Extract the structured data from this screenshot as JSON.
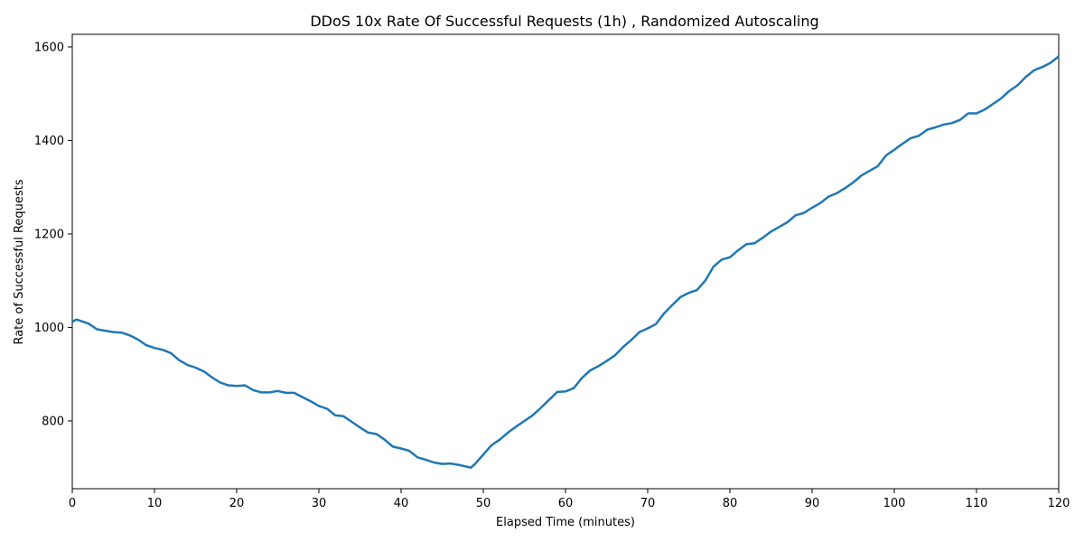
{
  "chart_data": {
    "type": "line",
    "title": "DDoS 10x Rate Of Successful Requests (1h) , Randomized Autoscaling",
    "xlabel": "Elapsed Time (minutes)",
    "ylabel": "Rate of Successful Requests",
    "xlim": [
      0,
      120
    ],
    "ylim": [
      655,
      1627
    ],
    "xticks": [
      0,
      10,
      20,
      30,
      40,
      50,
      60,
      70,
      80,
      90,
      100,
      110,
      120
    ],
    "yticks": [
      800,
      1000,
      1200,
      1400,
      1600
    ],
    "grid": false,
    "color": "#1f77b4",
    "series": [
      {
        "x": [
          0,
          0.5,
          1,
          2,
          3,
          4,
          5,
          6,
          7,
          8,
          9,
          10,
          11,
          12,
          13,
          14,
          15,
          16,
          17,
          18,
          19,
          20,
          21,
          22,
          23,
          24,
          25,
          26,
          27,
          28,
          29,
          30,
          31,
          32,
          33,
          34,
          35,
          36,
          37,
          38,
          39,
          40,
          41,
          42,
          43,
          44,
          45,
          46,
          47,
          48,
          48.5,
          49,
          50,
          51,
          52,
          53,
          54,
          55,
          56,
          57,
          58,
          59,
          60,
          61,
          62,
          63,
          64,
          65,
          66,
          67,
          68,
          69,
          70,
          71,
          72,
          73,
          74,
          75,
          76,
          77,
          78,
          79,
          80,
          81,
          82,
          83,
          84,
          85,
          86,
          87,
          88,
          89,
          90,
          91,
          92,
          93,
          94,
          95,
          96,
          97,
          98,
          99,
          100,
          101,
          102,
          103,
          104,
          105,
          106,
          107,
          108,
          109,
          110,
          111,
          112,
          113,
          114,
          115,
          116,
          117,
          118,
          119,
          120
        ],
        "y": [
          1012,
          1017,
          1014,
          1008,
          996,
          993,
          990,
          989,
          983,
          974,
          962,
          956,
          952,
          945,
          930,
          920,
          914,
          906,
          893,
          882,
          876,
          875,
          876,
          866,
          861,
          861,
          864,
          860,
          860,
          851,
          842,
          832,
          826,
          812,
          810,
          798,
          786,
          775,
          772,
          760,
          745,
          741,
          736,
          722,
          717,
          711,
          708,
          709,
          706,
          702,
          700,
          708,
          728,
          748,
          760,
          775,
          788,
          800,
          812,
          828,
          845,
          862,
          863,
          870,
          892,
          908,
          917,
          928,
          940,
          958,
          973,
          990,
          998,
          1007,
          1030,
          1048,
          1065,
          1074,
          1080,
          1100,
          1130,
          1145,
          1150,
          1165,
          1178,
          1180,
          1192,
          1205,
          1215,
          1225,
          1240,
          1245,
          1256,
          1266,
          1280,
          1287,
          1298,
          1310,
          1325,
          1335,
          1345,
          1368,
          1380,
          1393,
          1405,
          1410,
          1423,
          1428,
          1434,
          1437,
          1444,
          1458,
          1458,
          1466,
          1478,
          1490,
          1506,
          1518,
          1536,
          1550,
          1557,
          1566,
          1580
        ]
      }
    ]
  }
}
